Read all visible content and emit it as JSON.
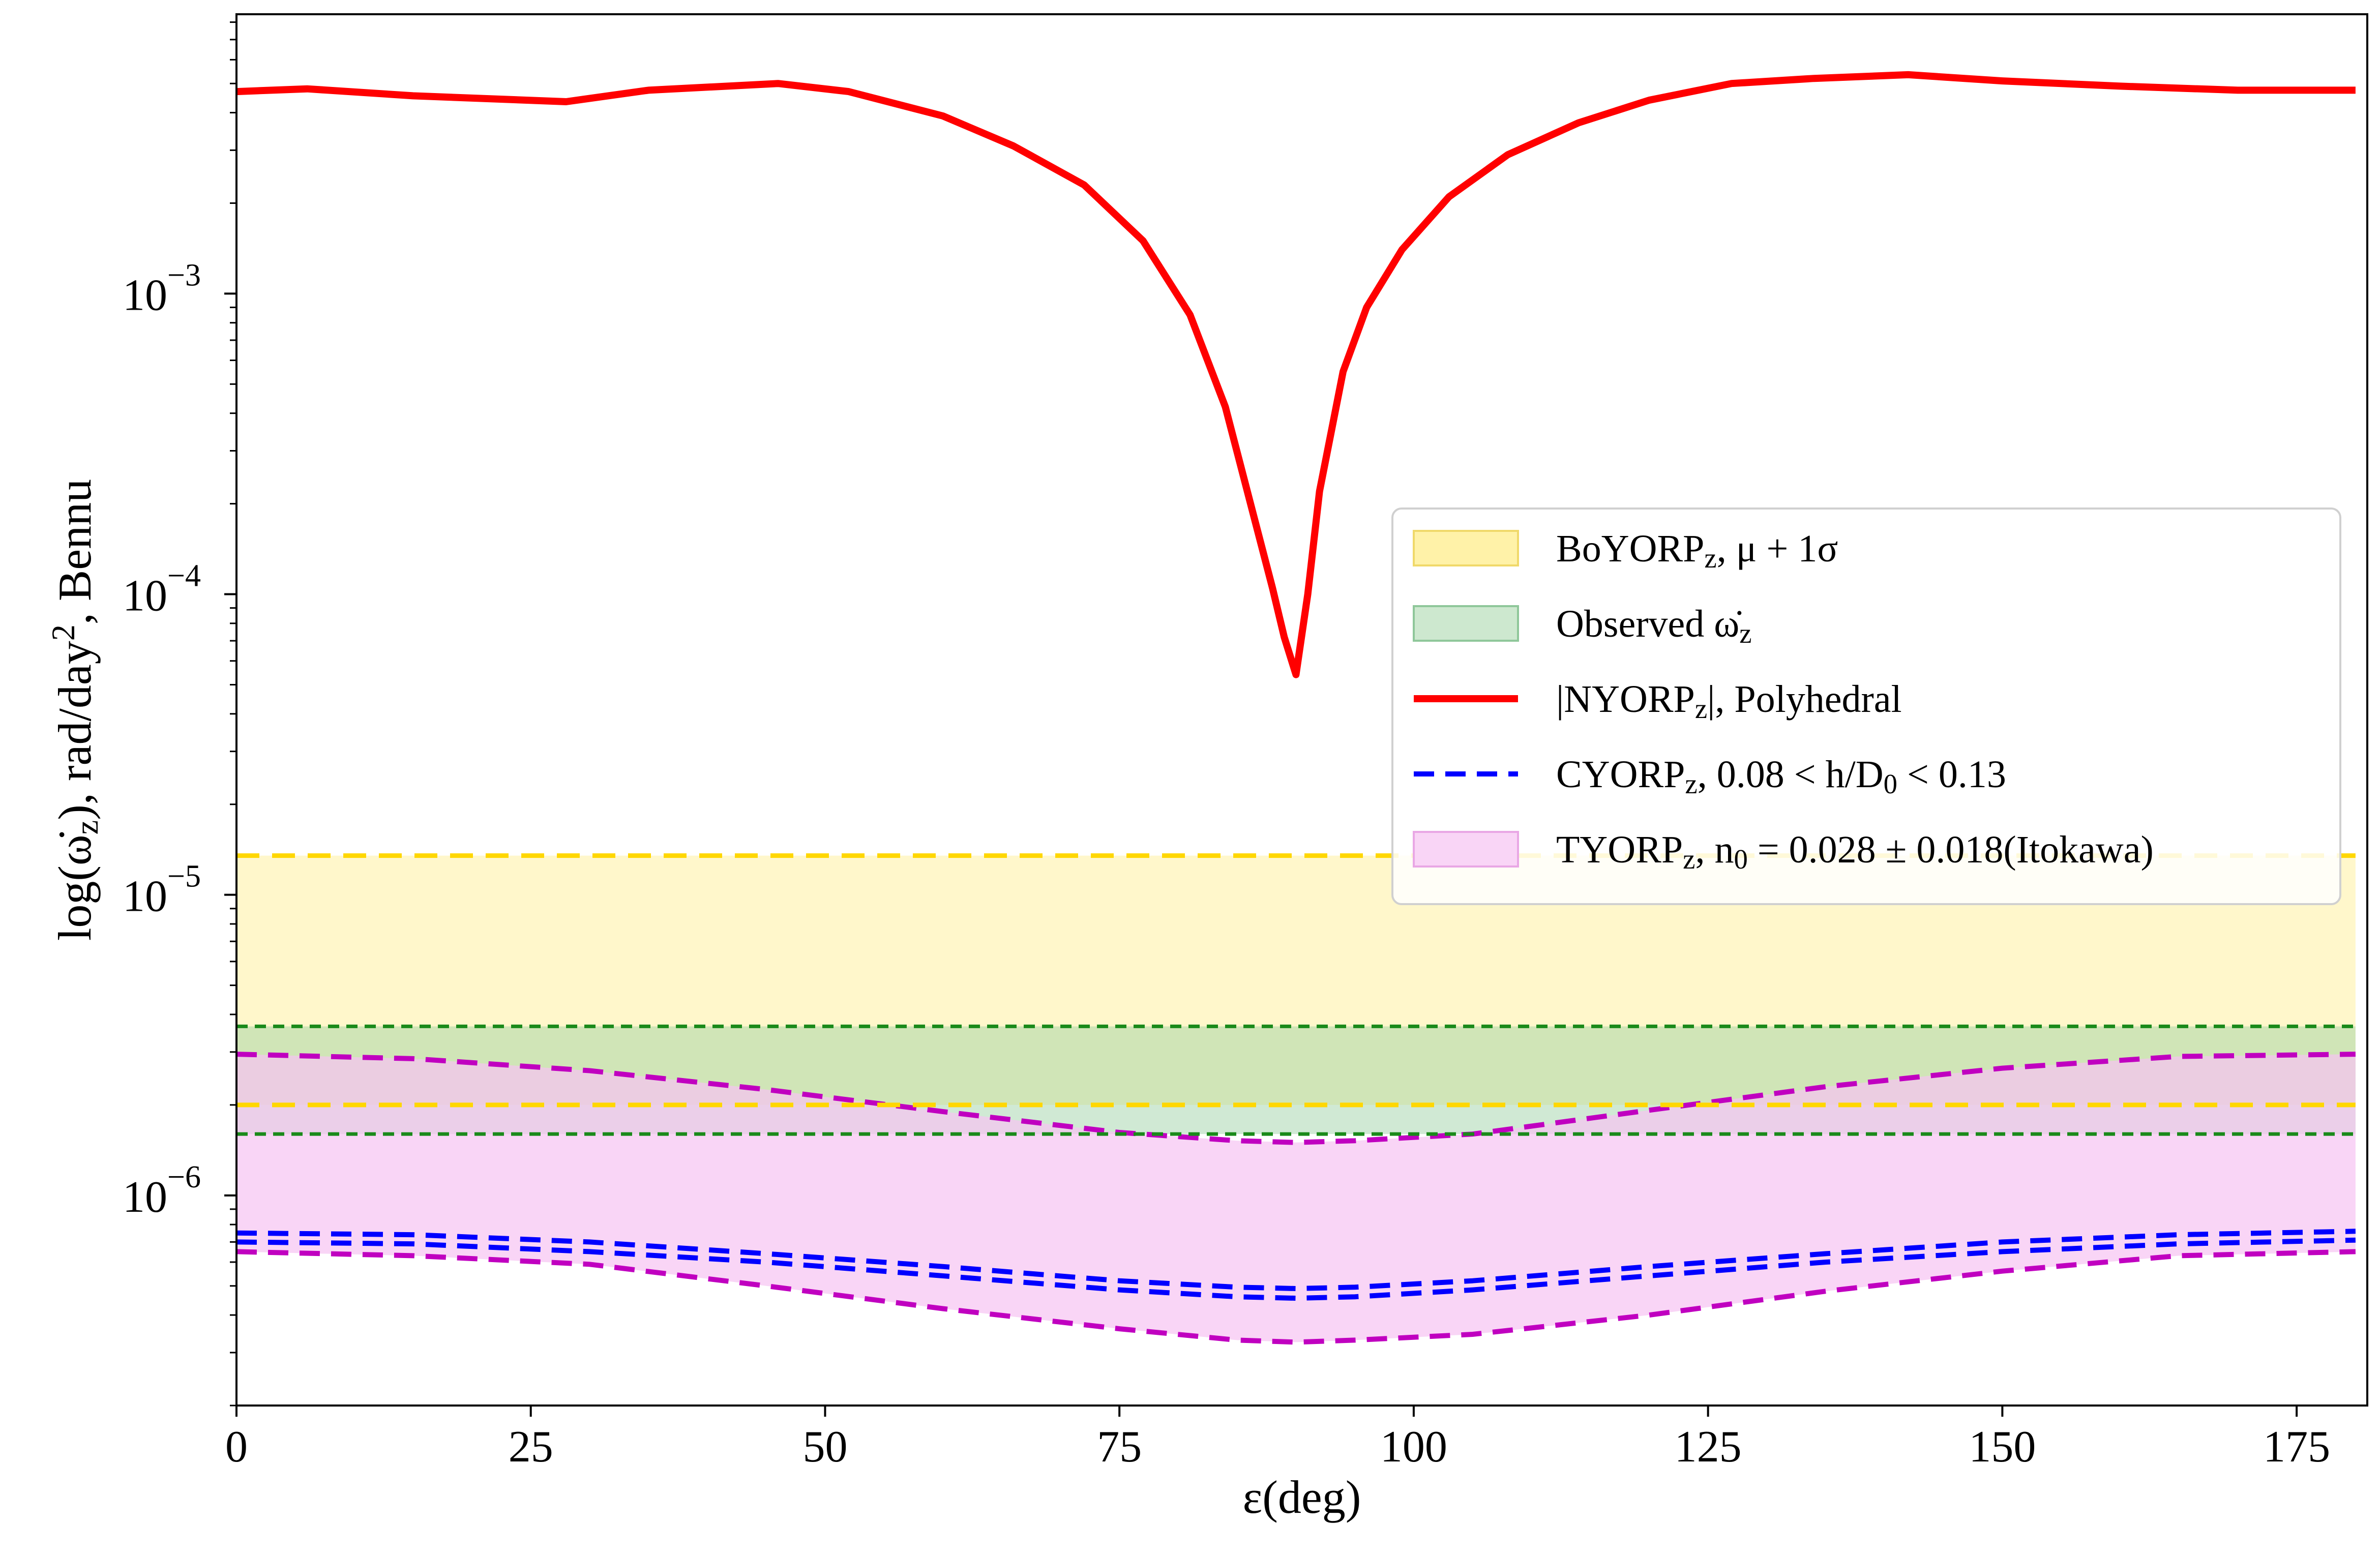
{
  "chart_data": {
    "type": "line",
    "title": "",
    "xlabel": "ε(deg)",
    "ylabel": "log(ω̇z), rad/day², Bennu",
    "xlim": [
      0,
      181
    ],
    "ylim": [
      2e-07,
      0.0085
    ],
    "yscale": "log",
    "grid": false,
    "legend_position": "center-right",
    "x_ticks": [
      0,
      25,
      50,
      75,
      100,
      125,
      150,
      175
    ],
    "y_ticks": [
      {
        "value": 1e-06,
        "base": "10",
        "exp": "−6"
      },
      {
        "value": 1e-05,
        "base": "10",
        "exp": "−5"
      },
      {
        "value": 0.0001,
        "base": "10",
        "exp": "−4"
      },
      {
        "value": 0.001,
        "base": "10",
        "exp": "−3"
      }
    ],
    "legend": [
      {
        "kind": "patch",
        "color": "#fff2a8",
        "edge": "#f0d96a",
        "parts": [
          [
            "BoYORP",
            ""
          ],
          [
            "z",
            "sub"
          ],
          [
            ", μ + 1σ",
            ""
          ]
        ]
      },
      {
        "kind": "patch",
        "color": "#cde8cf",
        "edge": "#8fc79a",
        "parts": [
          [
            "Observed ω̇",
            ""
          ],
          [
            "z",
            "sub"
          ]
        ]
      },
      {
        "kind": "line",
        "color": "#ff0000",
        "dash": "",
        "parts": [
          [
            "|NYORP",
            ""
          ],
          [
            "z",
            "sub"
          ],
          [
            "|, Polyhedral",
            ""
          ]
        ]
      },
      {
        "kind": "line",
        "color": "#0000ff",
        "dash": "40 22",
        "parts": [
          [
            "CYORP",
            ""
          ],
          [
            "z",
            "sub"
          ],
          [
            ", 0.08 < h/D",
            ""
          ],
          [
            "0",
            "sub"
          ],
          [
            " < 0.13",
            ""
          ]
        ]
      },
      {
        "kind": "patch",
        "color": "#f9d5f6",
        "edge": "#e9a7e5",
        "parts": [
          [
            "TYORP",
            ""
          ],
          [
            "z",
            "sub"
          ],
          [
            ", n",
            ""
          ],
          [
            "0",
            "sub"
          ],
          [
            " = 0.028 ± 0.018(Itokawa)",
            ""
          ]
        ]
      }
    ],
    "bands": [
      {
        "name": "BoYORP band",
        "color": "#fff2a8",
        "opacity": 0.6,
        "lower": 2e-06,
        "upper": 1.35e-05
      },
      {
        "name": "Observed band",
        "color": "#97cfa0",
        "opacity": 0.45,
        "lower": 1.6e-06,
        "upper": 3.65e-06
      }
    ],
    "hlines": [
      {
        "value": 1.35e-05,
        "color": "#ffd700",
        "dash": "45 25",
        "width": 9
      },
      {
        "value": 2e-06,
        "color": "#ffd700",
        "dash": "45 25",
        "width": 9
      },
      {
        "value": 3.65e-06,
        "color": "#1a8a1a",
        "dash": "22 14",
        "width": 7
      },
      {
        "value": 1.6e-06,
        "color": "#1a8a1a",
        "dash": "22 14",
        "width": 7
      }
    ],
    "tyorp_band": {
      "color": "#f6c3f2",
      "opacity": 0.7,
      "x": [
        0,
        15,
        30,
        45,
        60,
        75,
        85,
        90,
        95,
        105,
        120,
        135,
        150,
        165,
        180
      ],
      "upper": [
        2.95e-06,
        2.85e-06,
        2.6e-06,
        2.25e-06,
        1.9e-06,
        1.62e-06,
        1.52e-06,
        1.5e-06,
        1.52e-06,
        1.6e-06,
        1.92e-06,
        2.3e-06,
        2.65e-06,
        2.9e-06,
        2.95e-06
      ],
      "lower": [
        6.5e-07,
        6.3e-07,
        5.9e-07,
        5e-07,
        4.2e-07,
        3.6e-07,
        3.3e-07,
        3.25e-07,
        3.3e-07,
        3.45e-07,
        4e-07,
        4.8e-07,
        5.6e-07,
        6.3e-07,
        6.5e-07
      ],
      "edge_color": "#c000c0",
      "edge_dash": "40 22"
    },
    "series": [
      {
        "name": "|NYORPz|, Polyhedral",
        "color": "#ff0000",
        "width": 14,
        "dash": "",
        "x": [
          0,
          6,
          15,
          28,
          35,
          46,
          52,
          60,
          66,
          72,
          77,
          81,
          84,
          86,
          88,
          89,
          90,
          91,
          92,
          94,
          96,
          99,
          103,
          108,
          114,
          120,
          127,
          134,
          142,
          150,
          160,
          170,
          180
        ],
        "y": [
          0.0047,
          0.0048,
          0.00455,
          0.00435,
          0.00475,
          0.005,
          0.0047,
          0.0039,
          0.0031,
          0.0023,
          0.0015,
          0.00085,
          0.00042,
          0.00021,
          0.000105,
          7.2e-05,
          5.4e-05,
          0.0001,
          0.00022,
          0.00055,
          0.0009,
          0.0014,
          0.0021,
          0.0029,
          0.0037,
          0.0044,
          0.005,
          0.0052,
          0.00535,
          0.0051,
          0.0049,
          0.00475,
          0.00475
        ]
      },
      {
        "name": "CYORPz upper",
        "color": "#0000ff",
        "width": 10,
        "dash": "40 22",
        "x": [
          0,
          15,
          30,
          45,
          60,
          75,
          85,
          90,
          95,
          105,
          120,
          135,
          150,
          165,
          180
        ],
        "y": [
          7.5e-07,
          7.4e-07,
          7e-07,
          6.4e-07,
          5.8e-07,
          5.2e-07,
          4.95e-07,
          4.9e-07,
          4.95e-07,
          5.2e-07,
          5.8e-07,
          6.4e-07,
          7e-07,
          7.4e-07,
          7.6e-07
        ]
      },
      {
        "name": "CYORPz lower",
        "color": "#0000ff",
        "width": 10,
        "dash": "40 22",
        "x": [
          0,
          15,
          30,
          45,
          60,
          75,
          85,
          90,
          95,
          105,
          120,
          135,
          150,
          165,
          180
        ],
        "y": [
          7e-07,
          6.9e-07,
          6.5e-07,
          6e-07,
          5.4e-07,
          4.85e-07,
          4.6e-07,
          4.55e-07,
          4.6e-07,
          4.85e-07,
          5.4e-07,
          6e-07,
          6.5e-07,
          6.9e-07,
          7.1e-07
        ]
      }
    ]
  }
}
